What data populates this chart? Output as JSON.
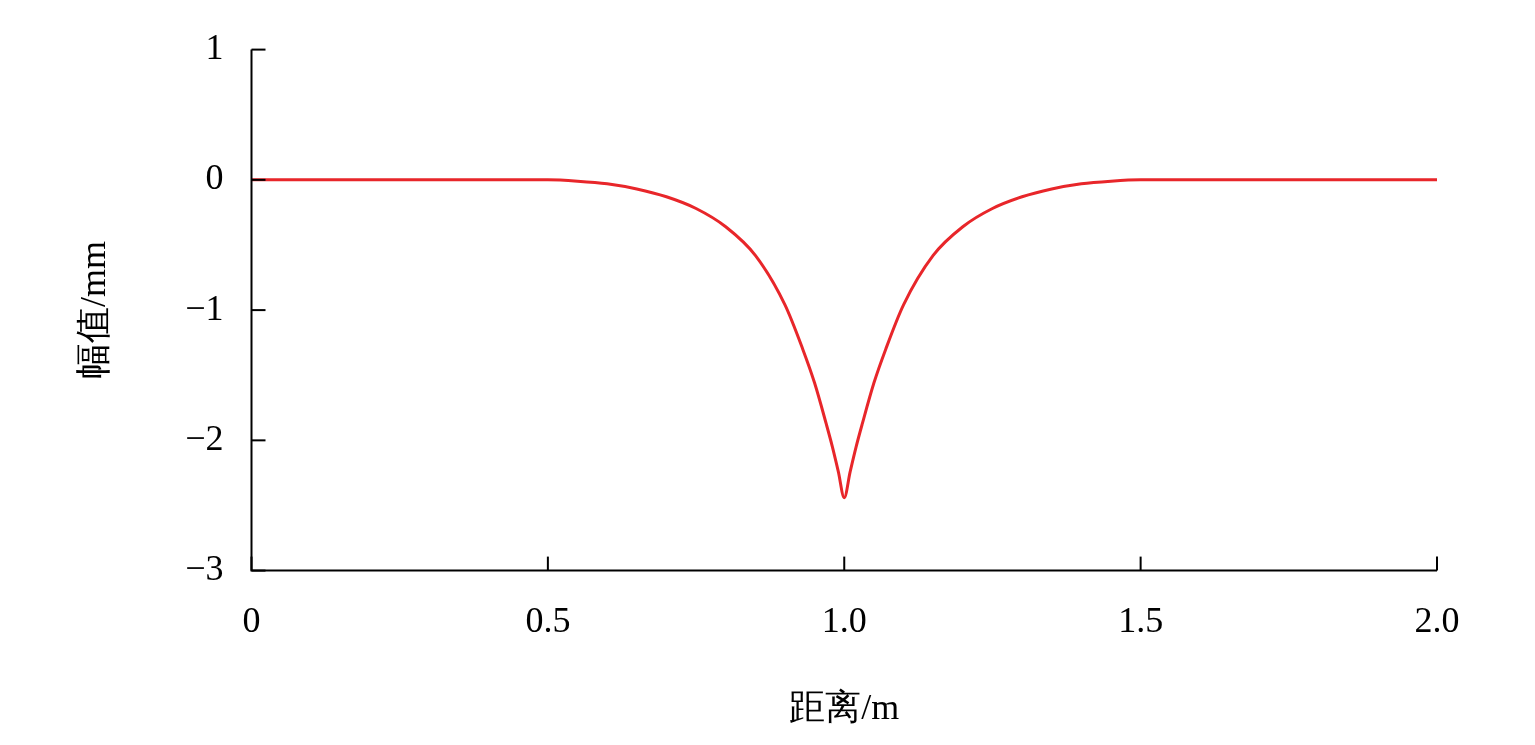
{
  "chart_data": {
    "type": "line",
    "xlabel": "距离/m",
    "ylabel": "幅值/mm",
    "series": [
      {
        "color": "#e8262a",
        "x": [
          0,
          0.1,
          0.2,
          0.3,
          0.4,
          0.5,
          0.55,
          0.6,
          0.65,
          0.7,
          0.75,
          0.8,
          0.85,
          0.9,
          0.93,
          0.95,
          0.97,
          0.98,
          0.99,
          1.0,
          1.01,
          1.02,
          1.03,
          1.05,
          1.07,
          1.1,
          1.15,
          1.2,
          1.25,
          1.3,
          1.35,
          1.4,
          1.45,
          1.5,
          1.6,
          1.7,
          1.8,
          1.9,
          2.0
        ],
        "values": [
          0,
          0,
          0,
          0,
          0,
          0,
          -0.01,
          -0.03,
          -0.07,
          -0.13,
          -0.22,
          -0.36,
          -0.58,
          -0.96,
          -1.3,
          -1.56,
          -1.88,
          -2.05,
          -2.24,
          -2.44,
          -2.24,
          -2.05,
          -1.88,
          -1.56,
          -1.3,
          -0.96,
          -0.58,
          -0.36,
          -0.22,
          -0.13,
          -0.07,
          -0.03,
          -0.01,
          0,
          0,
          0,
          0,
          0,
          0
        ]
      }
    ],
    "xlim": [
      0,
      2.0
    ],
    "xticks": [
      0,
      0.5,
      {
        "value": 1.0,
        "label": "1.0"
      },
      1.5,
      {
        "value": 2.0,
        "label": "2.0"
      }
    ],
    "ylim": [
      -3,
      1
    ],
    "yticks": [
      {
        "value": -3,
        "label": "−3"
      },
      {
        "value": -2,
        "label": "−2"
      },
      {
        "value": -1,
        "label": "−1"
      },
      0,
      1
    ],
    "grid": false,
    "legend": false,
    "marker": "none",
    "line_style": "solid"
  }
}
